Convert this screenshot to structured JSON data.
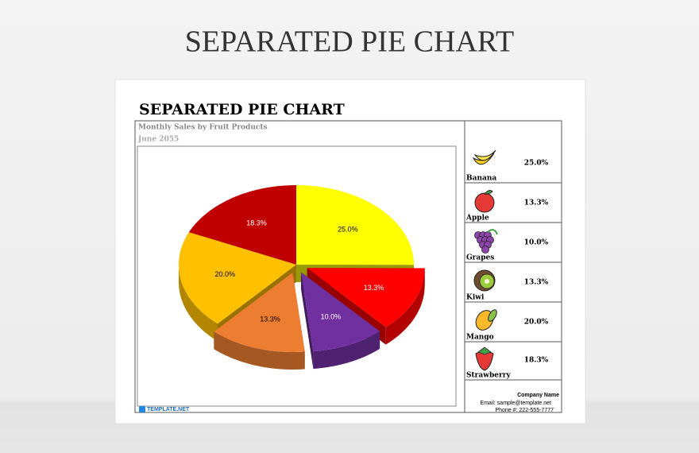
{
  "page_title": "SEPARATED PIE CHART",
  "chart_data": {
    "type": "pie",
    "title": "SEPARATED PIE CHART",
    "subtitle": "Monthly Sales by Fruit Products",
    "date": "June 2055",
    "categories": [
      "Banana",
      "Apple",
      "Grapes",
      "Kiwi",
      "Mango",
      "Strawberry"
    ],
    "values": [
      25.0,
      13.3,
      10.0,
      13.3,
      20.0,
      18.3
    ],
    "value_labels": [
      "25.0%",
      "13.3%",
      "10.0%",
      "13.3%",
      "20.0%",
      "18.3%"
    ],
    "colors": [
      "#ffff00",
      "#ff0000",
      "#7030a0",
      "#ed7d31",
      "#ffc000",
      "#c00000"
    ],
    "exploded": [
      false,
      true,
      true,
      true,
      false,
      false
    ]
  },
  "footer": {
    "company": "Company Name",
    "email": "Email: sample@template.net",
    "phone": "Phone #: 222-555-7777"
  },
  "brand": "TEMPLATE.NET"
}
